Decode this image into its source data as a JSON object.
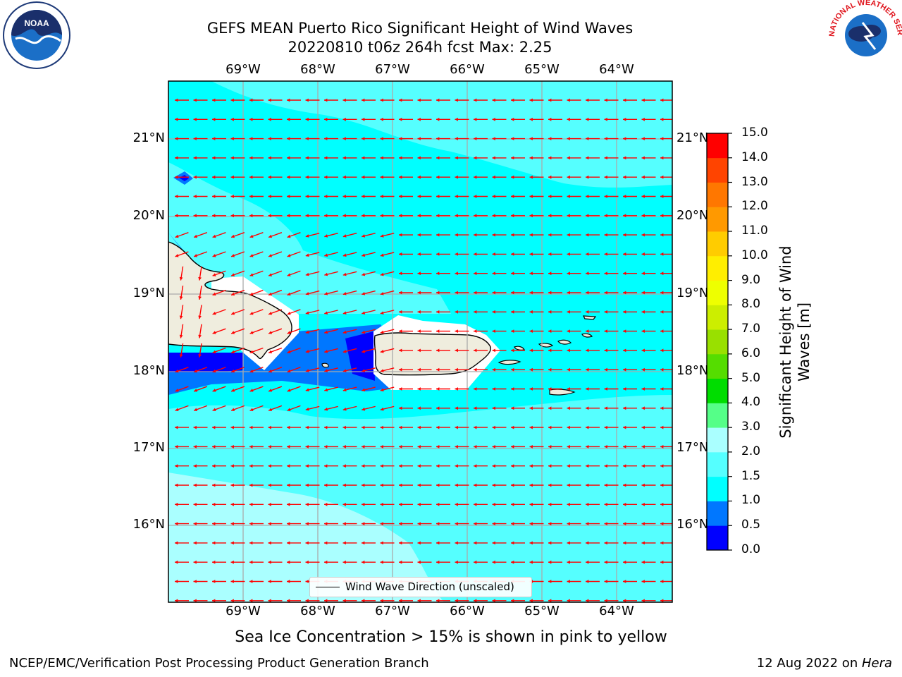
{
  "title": {
    "line1": "GEFS MEAN Puerto Rico Significant Height of Wind Waves",
    "line2": "20220810 t06z 264h fcst   Max: 2.25"
  },
  "map": {
    "lon_labels": [
      "69°W",
      "68°W",
      "67°W",
      "66°W",
      "65°W",
      "64°W"
    ],
    "lat_labels_left": [
      "21°N",
      "20°N",
      "19°N",
      "18°N",
      "17°N",
      "16°N"
    ],
    "lat_labels_right": [
      "21°N",
      "20°N",
      "19°N",
      "18°N",
      "17°N",
      "16°N"
    ],
    "legend": "Wind Wave Direction (unscaled)",
    "arrow_color": "#ff0000",
    "land_color": "#efedde",
    "ocean_color": "#00ffff"
  },
  "colorbar": {
    "title_line1": "Significant Height of Wind",
    "title_line2": "Waves [m]",
    "ticks": [
      "0.0",
      "0.5",
      "1.0",
      "1.5",
      "2.0",
      "3.0",
      "4.0",
      "5.0",
      "6.0",
      "7.0",
      "8.0",
      "9.0",
      "10.0",
      "11.0",
      "12.0",
      "13.0",
      "14.0",
      "15.0"
    ],
    "colors": [
      "#0000ff",
      "#0077ff",
      "#00ffff",
      "#55ffff",
      "#aaffff",
      "#55ff88",
      "#00dd00",
      "#55dd00",
      "#99e000",
      "#ccee00",
      "#eeff00",
      "#ffee00",
      "#ffcc00",
      "#ff9900",
      "#ff7700",
      "#ff4400",
      "#ff0000"
    ]
  },
  "caption": "Sea Ice Concentration > 15% is shown in pink to yellow",
  "footer": {
    "left": "NCEP/EMC/Verification Post Processing Product Generation Branch",
    "date": "12 Aug 2022 on ",
    "host": "Hera"
  },
  "logos": {
    "noaa_text": "NOAA",
    "nws_text": "NATIONAL WEATHER SERVICE"
  }
}
